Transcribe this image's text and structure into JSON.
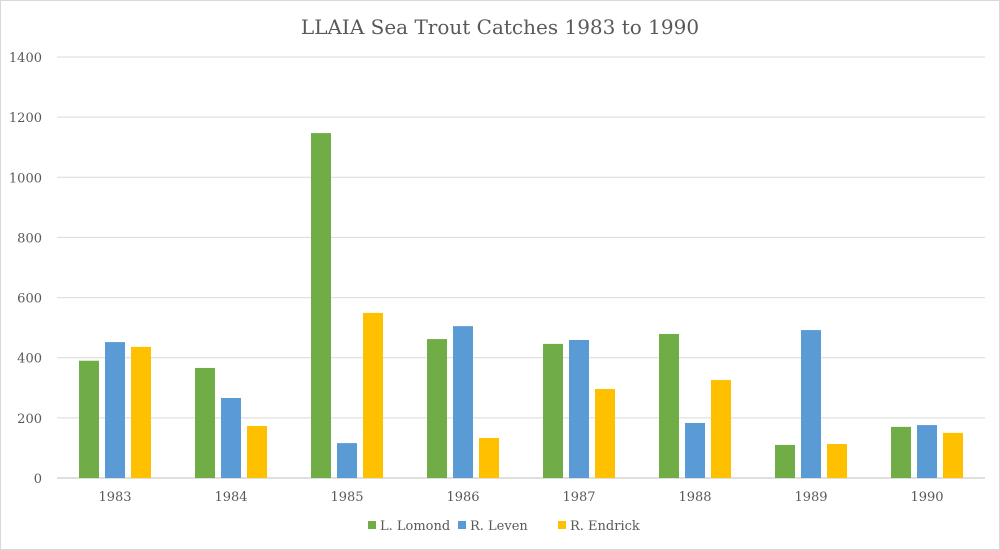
{
  "chart_data": {
    "type": "bar",
    "title": "LLAIA Sea Trout Catches 1983 to 1990",
    "xlabel": "",
    "ylabel": "",
    "ylim": [
      0,
      1400
    ],
    "yticks": [
      0,
      200,
      400,
      600,
      800,
      1000,
      1200,
      1400
    ],
    "grid": true,
    "legend_position": "bottom",
    "categories": [
      "1983",
      "1984",
      "1985",
      "1986",
      "1987",
      "1988",
      "1989",
      "1990"
    ],
    "series": [
      {
        "name": "L. Lomond",
        "color": "#70ad47",
        "values": [
          390,
          366,
          1147,
          462,
          446,
          479,
          110,
          170
        ]
      },
      {
        "name": "R. Leven",
        "color": "#5b9bd5",
        "values": [
          452,
          266,
          116,
          505,
          459,
          183,
          492,
          176
        ]
      },
      {
        "name": "R. Endrick",
        "color": "#ffc000",
        "values": [
          436,
          173,
          549,
          133,
          296,
          326,
          113,
          150
        ]
      }
    ]
  }
}
